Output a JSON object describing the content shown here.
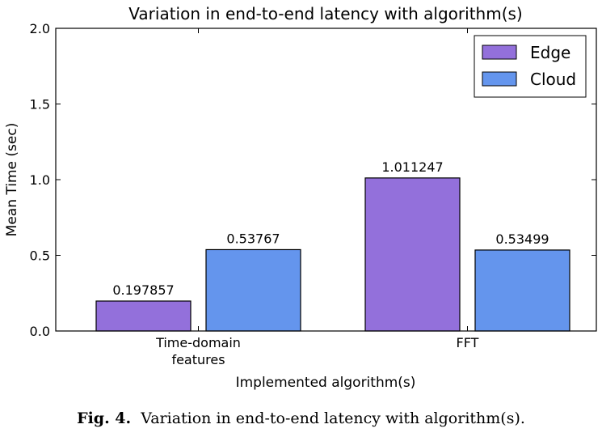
{
  "chart_data": {
    "type": "bar",
    "title": "Variation in end-to-end latency with algorithm(s)",
    "xlabel": "Implemented algorithm(s)",
    "ylabel": "Mean Time (sec)",
    "ylim": [
      0,
      2.0
    ],
    "yticks": [
      "0.0",
      "0.5",
      "1.0",
      "1.5",
      "2.0"
    ],
    "categories": [
      "Time-domain\nfeatures",
      "FFT"
    ],
    "series": [
      {
        "name": "Edge",
        "color": "#9370DB",
        "values": [
          0.197857,
          1.011247
        ],
        "labels": [
          "0.197857",
          "1.011247"
        ]
      },
      {
        "name": "Cloud",
        "color": "#6495ED",
        "values": [
          0.53767,
          0.53499
        ],
        "labels": [
          "0.53767",
          "0.53499"
        ]
      }
    ],
    "legend": "top-right",
    "grid": false
  },
  "caption": {
    "label": "Fig. 4.",
    "text": "Variation in end-to-end latency with algorithm(s)."
  }
}
